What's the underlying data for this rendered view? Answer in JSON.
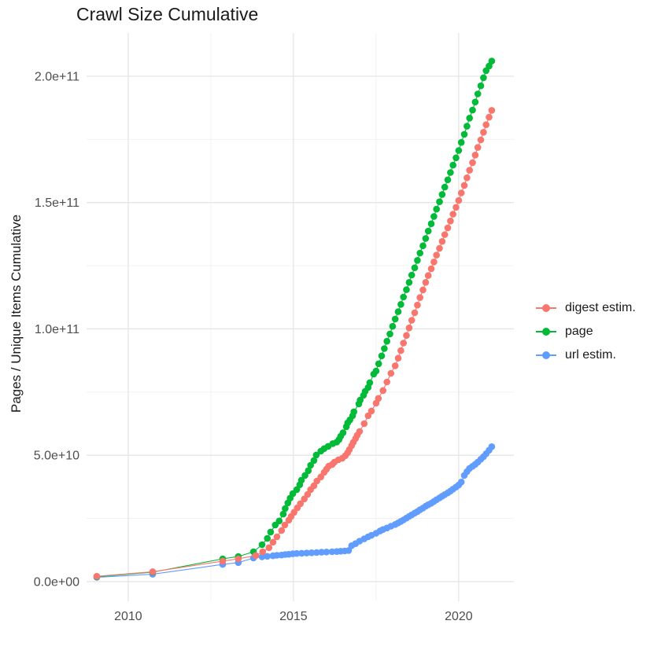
{
  "chart": {
    "title": "Crawl Size Cumulative",
    "y_axis_title": "Pages / Unique Items Cumulative"
  },
  "chart_data": {
    "type": "line",
    "title": "Crawl Size Cumulative",
    "xlabel": "",
    "ylabel": "Pages / Unique Items Cumulative",
    "x_unit": "year (decimal)",
    "y_value_unit": "billions (1e9) of pages / unique items",
    "xlim": [
      2008.74,
      2021.67
    ],
    "ylim_billions": [
      -7.8,
      217.1
    ],
    "grid": true,
    "legend_position": "right",
    "x_ticks_major": [
      {
        "value": 2010,
        "label": "2010"
      },
      {
        "value": 2015,
        "label": "2015"
      },
      {
        "value": 2020,
        "label": "2020"
      }
    ],
    "x_ticks_minor": [
      2012.5,
      2017.5
    ],
    "y_ticks_major": [
      {
        "value": 0,
        "label": "0.0e+00"
      },
      {
        "value": 50,
        "label": "5.0e+10"
      },
      {
        "value": 100,
        "label": "1.0e+11"
      },
      {
        "value": 150,
        "label": "1.5e+11"
      },
      {
        "value": 200,
        "label": "2.0e+11"
      }
    ],
    "y_ticks_minor": [
      25,
      75,
      125,
      175
    ],
    "series": [
      {
        "name": "digest estim.",
        "color": "#F8766D",
        "points": [
          [
            2009.05,
            2.1
          ],
          [
            2010.74,
            3.9
          ],
          [
            2012.86,
            8.1
          ],
          [
            2013.33,
            9.0
          ],
          [
            2013.86,
            10.3
          ],
          [
            2014.07,
            11.8
          ],
          [
            2014.26,
            13.4
          ],
          [
            2014.38,
            15.6
          ],
          [
            2014.5,
            17.7
          ],
          [
            2014.64,
            20.2
          ],
          [
            2014.74,
            22.4
          ],
          [
            2014.86,
            24.3
          ],
          [
            2014.93,
            25.8
          ],
          [
            2015.02,
            27.4
          ],
          [
            2015.12,
            29.2
          ],
          [
            2015.21,
            30.8
          ],
          [
            2015.33,
            32.7
          ],
          [
            2015.43,
            34.5
          ],
          [
            2015.52,
            36.4
          ],
          [
            2015.62,
            37.9
          ],
          [
            2015.71,
            39.8
          ],
          [
            2015.83,
            41.4
          ],
          [
            2015.93,
            43.2
          ],
          [
            2016.0,
            44.5
          ],
          [
            2016.07,
            45.7
          ],
          [
            2016.17,
            46.3
          ],
          [
            2016.24,
            47.3
          ],
          [
            2016.36,
            48.2
          ],
          [
            2016.48,
            48.8
          ],
          [
            2016.57,
            49.8
          ],
          [
            2016.64,
            51.0
          ],
          [
            2016.69,
            52.2
          ],
          [
            2016.76,
            53.8
          ],
          [
            2016.81,
            55.1
          ],
          [
            2016.88,
            56.6
          ],
          [
            2016.93,
            57.9
          ],
          [
            2017.0,
            59.4
          ],
          [
            2017.14,
            62.5
          ],
          [
            2017.26,
            65.6
          ],
          [
            2017.36,
            67.5
          ],
          [
            2017.5,
            70.6
          ],
          [
            2017.57,
            72.5
          ],
          [
            2017.71,
            75.6
          ],
          [
            2017.83,
            79.0
          ],
          [
            2017.95,
            82.4
          ],
          [
            2018.08,
            85.4
          ],
          [
            2018.17,
            88.4
          ],
          [
            2018.25,
            91.4
          ],
          [
            2018.33,
            94.4
          ],
          [
            2018.42,
            97.4
          ],
          [
            2018.5,
            100.4
          ],
          [
            2018.58,
            103.4
          ],
          [
            2018.67,
            106.4
          ],
          [
            2018.75,
            109.4
          ],
          [
            2018.83,
            112.4
          ],
          [
            2018.92,
            115.4
          ],
          [
            2019.0,
            118.4
          ],
          [
            2019.08,
            121.1
          ],
          [
            2019.17,
            123.8
          ],
          [
            2019.25,
            126.5
          ],
          [
            2019.33,
            129.2
          ],
          [
            2019.42,
            131.9
          ],
          [
            2019.5,
            134.6
          ],
          [
            2019.58,
            137.3
          ],
          [
            2019.67,
            140.0
          ],
          [
            2019.75,
            142.7
          ],
          [
            2019.83,
            145.4
          ],
          [
            2019.92,
            148.1
          ],
          [
            2020.0,
            150.8
          ],
          [
            2020.08,
            153.8
          ],
          [
            2020.17,
            156.8
          ],
          [
            2020.25,
            159.8
          ],
          [
            2020.33,
            162.8
          ],
          [
            2020.42,
            165.8
          ],
          [
            2020.5,
            168.8
          ],
          [
            2020.58,
            171.8
          ],
          [
            2020.67,
            174.8
          ],
          [
            2020.75,
            177.8
          ],
          [
            2020.83,
            180.8
          ],
          [
            2020.92,
            183.8
          ],
          [
            2021.0,
            186.5
          ]
        ]
      },
      {
        "name": "page",
        "color": "#00BA38",
        "points": [
          [
            2009.05,
            1.9
          ],
          [
            2010.74,
            3.7
          ],
          [
            2012.86,
            9.0
          ],
          [
            2013.33,
            9.9
          ],
          [
            2013.79,
            11.8
          ],
          [
            2014.05,
            14.6
          ],
          [
            2014.21,
            17.1
          ],
          [
            2014.31,
            19.6
          ],
          [
            2014.45,
            22.4
          ],
          [
            2014.57,
            24.0
          ],
          [
            2014.69,
            26.7
          ],
          [
            2014.75,
            28.9
          ],
          [
            2014.83,
            31.1
          ],
          [
            2014.9,
            33.0
          ],
          [
            2014.98,
            34.8
          ],
          [
            2015.1,
            36.4
          ],
          [
            2015.19,
            38.3
          ],
          [
            2015.24,
            40.1
          ],
          [
            2015.35,
            42.0
          ],
          [
            2015.45,
            43.9
          ],
          [
            2015.52,
            46.0
          ],
          [
            2015.62,
            47.9
          ],
          [
            2015.69,
            50.1
          ],
          [
            2015.83,
            51.6
          ],
          [
            2015.93,
            52.6
          ],
          [
            2016.05,
            53.5
          ],
          [
            2016.19,
            54.6
          ],
          [
            2016.31,
            55.2
          ],
          [
            2016.38,
            56.2
          ],
          [
            2016.43,
            57.5
          ],
          [
            2016.5,
            58.9
          ],
          [
            2016.6,
            61.3
          ],
          [
            2016.64,
            62.8
          ],
          [
            2016.71,
            64.0
          ],
          [
            2016.79,
            65.6
          ],
          [
            2016.83,
            67.2
          ],
          [
            2016.98,
            70.3
          ],
          [
            2017.02,
            71.8
          ],
          [
            2017.12,
            73.7
          ],
          [
            2017.17,
            75.3
          ],
          [
            2017.26,
            76.8
          ],
          [
            2017.31,
            78.7
          ],
          [
            2017.43,
            82.1
          ],
          [
            2017.5,
            83.3
          ],
          [
            2017.58,
            86.2
          ],
          [
            2017.67,
            89.3
          ],
          [
            2017.75,
            92.2
          ],
          [
            2017.83,
            95.1
          ],
          [
            2017.92,
            98.0
          ],
          [
            2018.0,
            101.0
          ],
          [
            2018.08,
            103.9
          ],
          [
            2018.17,
            106.8
          ],
          [
            2018.25,
            109.7
          ],
          [
            2018.33,
            112.6
          ],
          [
            2018.42,
            115.5
          ],
          [
            2018.5,
            118.4
          ],
          [
            2018.58,
            121.3
          ],
          [
            2018.67,
            124.2
          ],
          [
            2018.75,
            127.1
          ],
          [
            2018.83,
            130.0
          ],
          [
            2018.92,
            132.9
          ],
          [
            2019.0,
            135.8
          ],
          [
            2019.08,
            138.7
          ],
          [
            2019.17,
            141.6
          ],
          [
            2019.25,
            144.5
          ],
          [
            2019.33,
            147.4
          ],
          [
            2019.42,
            150.3
          ],
          [
            2019.5,
            153.2
          ],
          [
            2019.58,
            156.1
          ],
          [
            2019.67,
            159.0
          ],
          [
            2019.75,
            161.9
          ],
          [
            2019.83,
            164.8
          ],
          [
            2019.92,
            167.7
          ],
          [
            2020.0,
            170.6
          ],
          [
            2020.08,
            173.8
          ],
          [
            2020.17,
            177.0
          ],
          [
            2020.25,
            180.2
          ],
          [
            2020.33,
            183.4
          ],
          [
            2020.42,
            186.6
          ],
          [
            2020.5,
            189.8
          ],
          [
            2020.58,
            193.0
          ],
          [
            2020.67,
            196.2
          ],
          [
            2020.75,
            199.4
          ],
          [
            2020.83,
            202.2
          ],
          [
            2020.92,
            204.0
          ],
          [
            2021.0,
            206.0
          ]
        ]
      },
      {
        "name": "url estim.",
        "color": "#619CFF",
        "points": [
          [
            2009.05,
            1.7
          ],
          [
            2010.74,
            2.9
          ],
          [
            2012.86,
            6.8
          ],
          [
            2013.33,
            7.5
          ],
          [
            2013.79,
            9.3
          ],
          [
            2014.05,
            9.8
          ],
          [
            2014.21,
            10.0
          ],
          [
            2014.38,
            10.2
          ],
          [
            2014.5,
            10.4
          ],
          [
            2014.64,
            10.5
          ],
          [
            2014.75,
            10.7
          ],
          [
            2014.86,
            10.8
          ],
          [
            2014.98,
            11.0
          ],
          [
            2015.1,
            11.1
          ],
          [
            2015.25,
            11.2
          ],
          [
            2015.4,
            11.3
          ],
          [
            2015.55,
            11.4
          ],
          [
            2015.7,
            11.5
          ],
          [
            2015.85,
            11.6
          ],
          [
            2016.0,
            11.7
          ],
          [
            2016.17,
            11.8
          ],
          [
            2016.31,
            11.9
          ],
          [
            2016.43,
            12.0
          ],
          [
            2016.55,
            12.1
          ],
          [
            2016.67,
            12.3
          ],
          [
            2016.76,
            14.2
          ],
          [
            2016.88,
            15.0
          ],
          [
            2017.0,
            16.0
          ],
          [
            2017.14,
            16.9
          ],
          [
            2017.26,
            17.7
          ],
          [
            2017.36,
            18.3
          ],
          [
            2017.5,
            19.1
          ],
          [
            2017.62,
            20.0
          ],
          [
            2017.71,
            20.6
          ],
          [
            2017.83,
            21.2
          ],
          [
            2017.95,
            21.9
          ],
          [
            2018.08,
            22.6
          ],
          [
            2018.17,
            23.2
          ],
          [
            2018.25,
            23.8
          ],
          [
            2018.33,
            24.4
          ],
          [
            2018.42,
            25.1
          ],
          [
            2018.5,
            25.8
          ],
          [
            2018.58,
            26.4
          ],
          [
            2018.67,
            27.1
          ],
          [
            2018.75,
            27.7
          ],
          [
            2018.83,
            28.4
          ],
          [
            2018.92,
            29.1
          ],
          [
            2019.0,
            29.8
          ],
          [
            2019.08,
            30.4
          ],
          [
            2019.17,
            31.0
          ],
          [
            2019.25,
            31.7
          ],
          [
            2019.33,
            32.4
          ],
          [
            2019.42,
            33.1
          ],
          [
            2019.5,
            33.8
          ],
          [
            2019.58,
            34.4
          ],
          [
            2019.67,
            35.1
          ],
          [
            2019.75,
            35.8
          ],
          [
            2019.83,
            36.6
          ],
          [
            2019.92,
            37.4
          ],
          [
            2020.0,
            38.2
          ],
          [
            2020.08,
            39.4
          ],
          [
            2020.17,
            42.0
          ],
          [
            2020.25,
            43.5
          ],
          [
            2020.33,
            44.8
          ],
          [
            2020.42,
            45.6
          ],
          [
            2020.5,
            46.4
          ],
          [
            2020.58,
            47.3
          ],
          [
            2020.67,
            48.4
          ],
          [
            2020.75,
            49.4
          ],
          [
            2020.83,
            50.6
          ],
          [
            2020.92,
            52.0
          ],
          [
            2021.0,
            53.4
          ]
        ]
      }
    ]
  },
  "legend": {
    "items": [
      {
        "label": "digest estim."
      },
      {
        "label": "page"
      },
      {
        "label": "url estim."
      }
    ]
  },
  "colors": {
    "grid_major": "#e5e5e5",
    "grid_minor": "#f0f0f0",
    "tick_label": "#4d4d4d",
    "text": "#1a1a1a",
    "background": "#ffffff"
  }
}
